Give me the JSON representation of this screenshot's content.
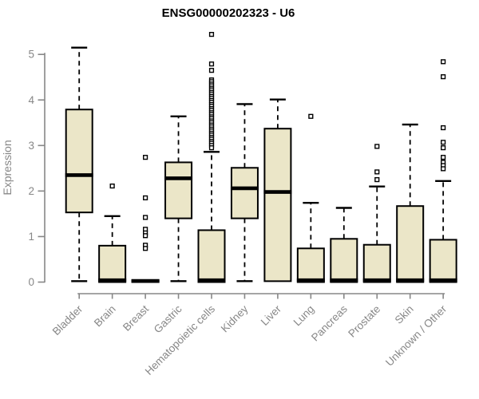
{
  "chart_data": {
    "type": "boxplot",
    "title": "ENSG00000202323 - U6",
    "xlabel": "",
    "ylabel": "Expression",
    "ylim": [
      0,
      5
    ],
    "yticks": [
      0,
      1,
      2,
      3,
      4,
      5
    ],
    "grid": false,
    "legend": "none",
    "colors": {
      "box_fill": "#EBE6C8",
      "box_stroke": "#000000",
      "axis": "#878787",
      "tick_label": "#878787",
      "title": "#000000"
    },
    "categories": [
      "Bladder",
      "Brain",
      "Breast",
      "Gastric",
      "Hematopoietic cells",
      "Kidney",
      "Liver",
      "Lung",
      "Pancreas",
      "Prostate",
      "Skin",
      "Unknown / Other"
    ],
    "series": [
      {
        "category": "Bladder",
        "whisker_low": 0.02,
        "q1": 1.53,
        "median": 2.35,
        "q3": 3.79,
        "whisker_high": 5.15,
        "outliers": []
      },
      {
        "category": "Brain",
        "whisker_low": 0.0,
        "q1": 0.0,
        "median": 0.04,
        "q3": 0.8,
        "whisker_high": 1.45,
        "outliers": [
          2.11
        ]
      },
      {
        "category": "Breast",
        "whisker_low": 0.0,
        "q1": 0.0,
        "median": 0.02,
        "q3": 0.04,
        "whisker_high": 0.04,
        "outliers": [
          2.74,
          1.85,
          1.42,
          1.16,
          1.08,
          1.02,
          0.81,
          0.74
        ]
      },
      {
        "category": "Gastric",
        "whisker_low": 0.02,
        "q1": 1.4,
        "median": 2.28,
        "q3": 2.63,
        "whisker_high": 3.64,
        "outliers": []
      },
      {
        "category": "Hematopoietic cells",
        "whisker_low": 0.0,
        "q1": 0.0,
        "median": 0.04,
        "q3": 1.14,
        "whisker_high": 2.86,
        "outliers": [
          5.44,
          4.79,
          4.65,
          4.44,
          4.4,
          4.35,
          4.31,
          4.26,
          4.22,
          4.17,
          4.13,
          4.08,
          4.04,
          3.99,
          3.95,
          3.9,
          3.86,
          3.81,
          3.77,
          3.72,
          3.68,
          3.63,
          3.59,
          3.54,
          3.5,
          3.45,
          3.41,
          3.36,
          3.32,
          3.27,
          3.23,
          3.18,
          3.14,
          3.09,
          3.05,
          3.0,
          2.95
        ]
      },
      {
        "category": "Kidney",
        "whisker_low": 0.02,
        "q1": 1.4,
        "median": 2.06,
        "q3": 2.51,
        "whisker_high": 3.91,
        "outliers": []
      },
      {
        "category": "Liver",
        "whisker_low": 0.02,
        "q1": 0.02,
        "median": 1.98,
        "q3": 3.37,
        "whisker_high": 4.01,
        "outliers": []
      },
      {
        "category": "Lung",
        "whisker_low": 0.0,
        "q1": 0.0,
        "median": 0.04,
        "q3": 0.74,
        "whisker_high": 1.74,
        "outliers": [
          3.64
        ]
      },
      {
        "category": "Pancreas",
        "whisker_low": 0.0,
        "q1": 0.0,
        "median": 0.04,
        "q3": 0.95,
        "whisker_high": 1.63,
        "outliers": []
      },
      {
        "category": "Prostate",
        "whisker_low": 0.0,
        "q1": 0.0,
        "median": 0.04,
        "q3": 0.82,
        "whisker_high": 2.1,
        "outliers": [
          2.98,
          2.42,
          2.25
        ]
      },
      {
        "category": "Skin",
        "whisker_low": 0.0,
        "q1": 0.0,
        "median": 0.04,
        "q3": 1.67,
        "whisker_high": 3.46,
        "outliers": []
      },
      {
        "category": "Unknown / Other",
        "whisker_low": 0.0,
        "q1": 0.0,
        "median": 0.04,
        "q3": 0.93,
        "whisker_high": 2.22,
        "outliers": [
          4.84,
          4.51,
          3.39,
          3.07,
          2.95,
          2.74,
          2.63,
          2.56,
          2.49
        ]
      }
    ]
  }
}
